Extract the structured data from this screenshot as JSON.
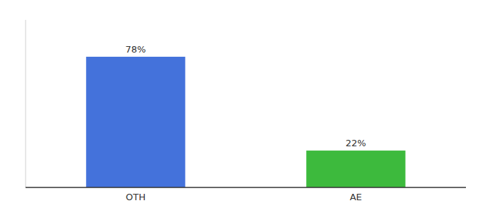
{
  "chart_data": {
    "type": "bar",
    "categories": [
      "OTH",
      "AE"
    ],
    "values": [
      78,
      22
    ],
    "value_labels": [
      "78%",
      "22%"
    ],
    "colors": [
      "#4472db",
      "#3dba3d"
    ],
    "ylim": [
      0,
      100
    ],
    "data_labels": true,
    "tick_labels": "x"
  }
}
